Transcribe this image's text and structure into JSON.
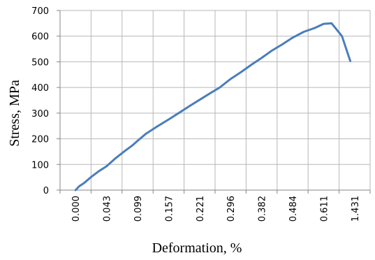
{
  "chart_data": {
    "type": "line",
    "title": "",
    "xlabel": "Deformation, %",
    "ylabel": "Stress, MPa",
    "x_tick_labels": [
      "0.000",
      "0.043",
      "0.099",
      "0.157",
      "0.221",
      "0.296",
      "0.382",
      "0.484",
      "0.611",
      "1.431"
    ],
    "y_ticks": [
      0,
      100,
      200,
      300,
      400,
      500,
      600,
      700
    ],
    "ylim": [
      0,
      700
    ],
    "grid": true,
    "line_color": "#4a7ebb",
    "series": [
      {
        "values": [
          [
            0.0,
            0
          ],
          [
            0.005,
            15
          ],
          [
            0.012,
            28
          ],
          [
            0.022,
            52
          ],
          [
            0.032,
            73
          ],
          [
            0.043,
            93
          ],
          [
            0.058,
            122
          ],
          [
            0.075,
            151
          ],
          [
            0.09,
            175
          ],
          [
            0.099,
            192
          ],
          [
            0.115,
            220
          ],
          [
            0.135,
            247
          ],
          [
            0.157,
            275
          ],
          [
            0.18,
            303
          ],
          [
            0.2,
            327
          ],
          [
            0.221,
            352
          ],
          [
            0.245,
            376
          ],
          [
            0.27,
            400
          ],
          [
            0.296,
            433
          ],
          [
            0.325,
            460
          ],
          [
            0.355,
            490
          ],
          [
            0.382,
            515
          ],
          [
            0.415,
            543
          ],
          [
            0.45,
            568
          ],
          [
            0.484,
            594
          ],
          [
            0.53,
            617
          ],
          [
            0.575,
            632
          ],
          [
            0.611,
            648
          ],
          [
            0.65,
            650
          ],
          [
            0.7,
            600
          ],
          [
            0.74,
            503
          ]
        ]
      }
    ]
  }
}
